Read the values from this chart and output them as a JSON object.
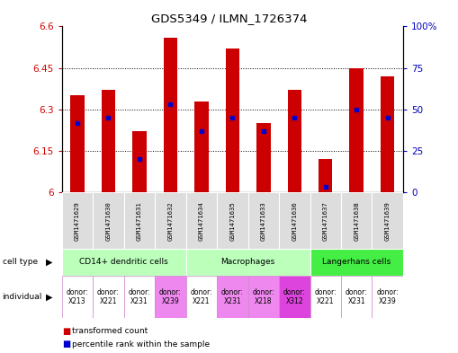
{
  "title": "GDS5349 / ILMN_1726374",
  "samples": [
    "GSM1471629",
    "GSM1471630",
    "GSM1471631",
    "GSM1471632",
    "GSM1471634",
    "GSM1471635",
    "GSM1471633",
    "GSM1471636",
    "GSM1471637",
    "GSM1471638",
    "GSM1471639"
  ],
  "bar_bottoms": [
    6.0,
    6.0,
    6.0,
    6.0,
    6.0,
    6.0,
    6.0,
    6.0,
    6.0,
    6.0,
    6.0
  ],
  "bar_tops": [
    6.35,
    6.37,
    6.22,
    6.56,
    6.33,
    6.52,
    6.25,
    6.37,
    6.12,
    6.45,
    6.42
  ],
  "blue_marker_vals": [
    6.25,
    6.27,
    6.12,
    6.32,
    6.22,
    6.27,
    6.22,
    6.27,
    6.02,
    6.3,
    6.27
  ],
  "ylim_left": [
    6.0,
    6.6
  ],
  "yticks_left": [
    6.0,
    6.15,
    6.3,
    6.45,
    6.6
  ],
  "ytick_labels_left": [
    "6",
    "6.15",
    "6.3",
    "6.45",
    "6.6"
  ],
  "yticks_right": [
    0,
    25,
    50,
    75,
    100
  ],
  "ytick_labels_right": [
    "0",
    "25",
    "50",
    "75",
    "100%"
  ],
  "bar_color": "#cc0000",
  "blue_color": "#0000cc",
  "cell_types": [
    {
      "label": "CD14+ dendritic cells",
      "start": 0,
      "end": 4,
      "color": "#bbffbb"
    },
    {
      "label": "Macrophages",
      "start": 4,
      "end": 8,
      "color": "#bbffbb"
    },
    {
      "label": "Langerhans cells",
      "start": 8,
      "end": 11,
      "color": "#44ee44"
    }
  ],
  "ind_colors": [
    "#ffffff",
    "#ffffff",
    "#ffffff",
    "#ee88ee",
    "#ffffff",
    "#ee88ee",
    "#ee88ee",
    "#dd44dd",
    "#ffffff",
    "#ffffff",
    "#ffffff"
  ],
  "ind_labels": [
    "donor:\nX213",
    "donor:\nX221",
    "donor:\nX231",
    "donor:\nX239",
    "donor:\nX221",
    "donor:\nX231",
    "donor:\nX218",
    "donor:\nX312",
    "donor:\nX221",
    "donor:\nX231",
    "donor:\nX239"
  ],
  "sample_bg": "#dddddd",
  "background_color": "#ffffff",
  "tick_label_color_left": "#cc0000",
  "tick_label_color_right": "#0000bb",
  "grid_dotted": [
    6.15,
    6.3,
    6.45
  ]
}
